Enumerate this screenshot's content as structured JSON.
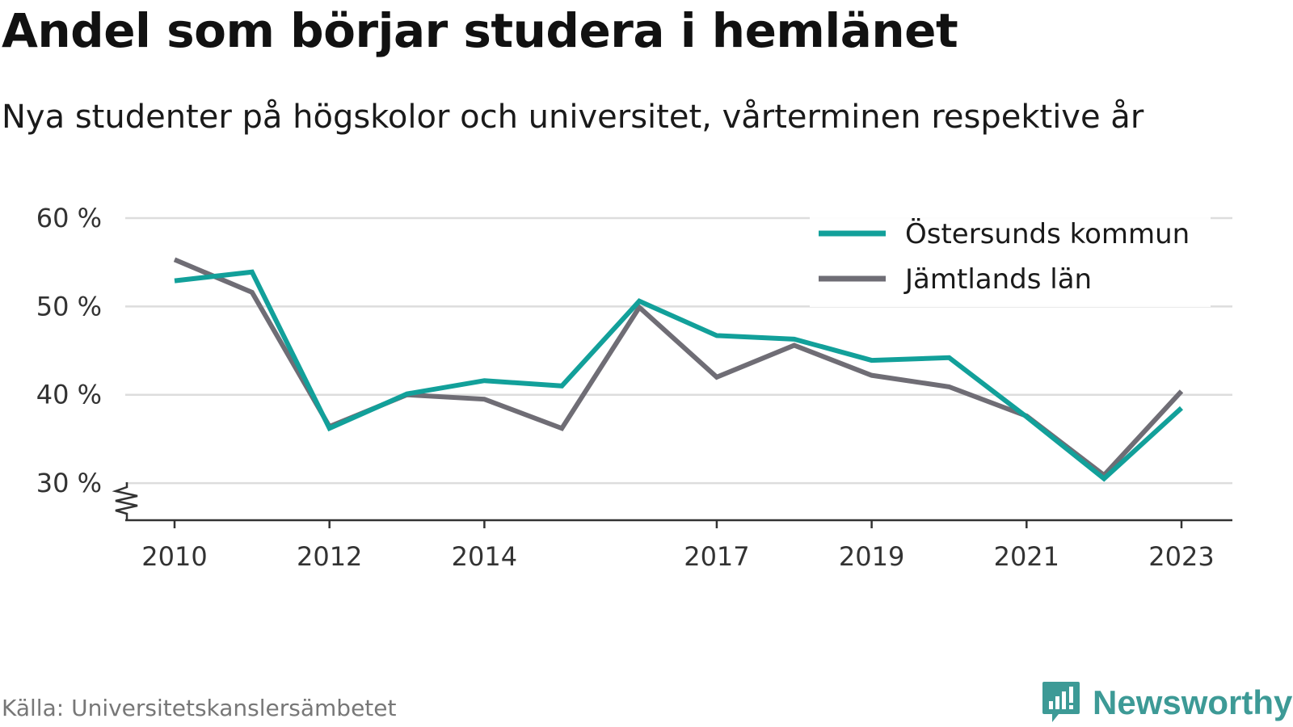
{
  "title": "Andel som börjar studera i hemlänet",
  "subtitle": "Nya studenter på högskolor och universitet, vårterminen respektive år",
  "source": "Källa: Universitetskanslersämbetet",
  "logo_text": "Newsworthy",
  "colors": {
    "ostersund": "#12a09a",
    "jamtland": "#6f6d75",
    "grid": "#dddddd",
    "axis": "#333333",
    "logo": "#3d9a96"
  },
  "chart_data": {
    "type": "line",
    "x": [
      2010,
      2011,
      2012,
      2013,
      2014,
      2015,
      2016,
      2017,
      2018,
      2019,
      2020,
      2021,
      2022,
      2023
    ],
    "x_tick_labels": [
      "2010",
      "2012",
      "2014",
      "2017",
      "2019",
      "2021",
      "2023"
    ],
    "y_tick_values": [
      30,
      40,
      50,
      60
    ],
    "y_tick_labels": [
      "30 %",
      "40 %",
      "50 %",
      "60 %"
    ],
    "ylim": [
      25.8,
      60
    ],
    "y_axis_break": true,
    "grid": true,
    "legend_position": "top-right",
    "series": [
      {
        "name": "Östersunds kommun",
        "color": "#12a09a",
        "values": [
          52.9,
          53.9,
          36.2,
          40.1,
          41.6,
          41.0,
          50.6,
          46.7,
          46.3,
          43.9,
          44.2,
          37.5,
          30.5,
          38.5
        ]
      },
      {
        "name": "Jämtlands län",
        "color": "#6f6d75",
        "values": [
          55.3,
          51.6,
          36.4,
          40.0,
          39.5,
          36.2,
          49.9,
          42.0,
          45.6,
          42.2,
          40.9,
          37.6,
          30.9,
          40.4
        ]
      }
    ]
  }
}
